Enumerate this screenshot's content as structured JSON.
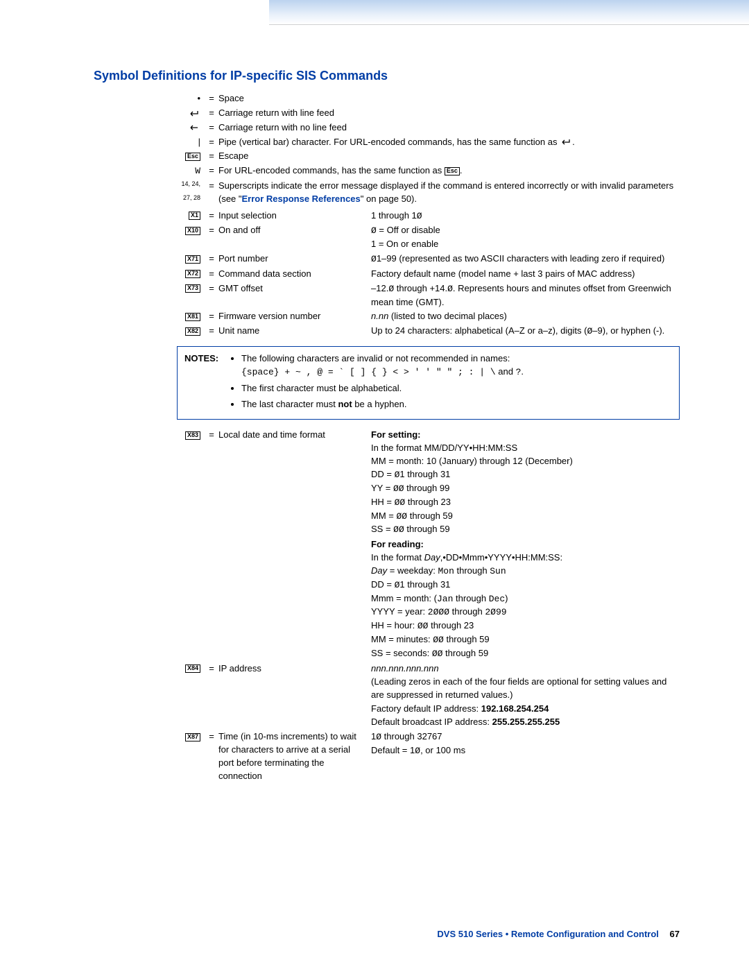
{
  "title": "Symbol Definitions for IP-specific SIS Commands",
  "basic": [
    {
      "sym": "•",
      "label": "Space"
    },
    {
      "sym": "cr-lf",
      "label": "Carriage return with line feed"
    },
    {
      "sym": "cr-nolf",
      "label": "Carriage return with no line feed"
    },
    {
      "sym": "|",
      "label": "Pipe (vertical bar) character. For URL-encoded commands, has the same function as ",
      "trail": "cr-lf"
    },
    {
      "sym": "Esc",
      "label": "Escape",
      "boxed": true
    },
    {
      "sym": "W",
      "label": "For URL-encoded commands, has the same function as ",
      "trail": "Esc",
      "trail_boxed": true,
      "mono": true
    }
  ],
  "super_note_pre": "Superscripts indicate the error message displayed if the command is entered incorrectly or with invalid parameters (see \"",
  "super_note_link": "Error Response References",
  "super_note_post": "\" on page 50).",
  "super_sym": "14, 24, 27, 28",
  "vars": [
    {
      "code": "X1",
      "label": "Input selection",
      "desc": "1 through 1Ø"
    },
    {
      "code": "X10",
      "label": "On and off",
      "desc": "Ø = Off or disable\n1 = On or enable"
    },
    {
      "code": "X71",
      "label": "Port number",
      "desc": "Ø1–99 (represented as two ASCII characters with leading zero if required)"
    },
    {
      "code": "X72",
      "label": "Command data section",
      "desc": "Factory default name (model name + last 3 pairs of MAC address)"
    },
    {
      "code": "X73",
      "label": "GMT offset",
      "desc": "–12.Ø through +14.Ø. Represents hours and minutes offset from Greenwich mean time (GMT)."
    },
    {
      "code": "X81",
      "label": "Firmware version number",
      "desc": "<i>n.nn</i> (listed to two decimal places)"
    },
    {
      "code": "X82",
      "label": "Unit name",
      "desc": "Up to 24 characters: alphabetical (A–Z  or a–z), digits (Ø–9), or hyphen (-)."
    }
  ],
  "notes": {
    "label": "NOTES:",
    "items": [
      "The following characters are invalid or not recommended in names:<br><span class=\"mono\">{space} + ~ , @ = ` [ ] { } &lt; &gt; ' ' \" \" ; : | \\</span> and <span class=\"mono\">?</span>.",
      "The first character must be alphabetical.",
      "The last character must <b>not</b> be a hyphen."
    ]
  },
  "vars2": [
    {
      "code": "X83",
      "label": "Local date and time format",
      "desc": "<b>For setting:</b><br>In the format MM/DD/YY•HH:MM:SS<br>MM = month: 10 (January) through 12 (December)<br>DD = Ø1 through 31<br>YY = ØØ through 99<br>HH = ØØ through 23<br>MM = ØØ through 59<br>SS = ØØ through 59"
    },
    {
      "code": "",
      "label": "",
      "desc": "<b>For reading:</b><br>In the format <i>Day</i>,•DD•Mmm•YYYY•HH:MM:SS:<br><i>Day</i> = weekday: <span class=\"mono\">Mon</span> through <span class=\"mono\">Sun</span><br>DD = Ø1 through 31<br>Mmm = month: (<span class=\"mono\">Jan</span> through <span class=\"mono\">Dec</span>)<br>YYYY = year: <span class=\"mono\">2ØØØ</span> through <span class=\"mono\">2Ø99</span><br>HH = hour: ØØ through 23<br>MM = minutes: ØØ through 59<br>SS = seconds: ØØ through 59"
    },
    {
      "code": "X84",
      "label": "IP address",
      "desc": "<i>nnn.nnn.nnn.nnn</i><br>(Leading zeros in each of the four fields are optional for setting values and are suppressed in returned values.)"
    },
    {
      "code": "",
      "label": "",
      "desc": "Factory default IP address: <b>192.168.254.254</b><br>Default broadcast IP address: <b>255.255.255.255</b>"
    },
    {
      "code": "X87",
      "label": "Time (in 10-ms increments) to wait for characters to arrive at a serial port before terminating the connection",
      "desc": "1Ø through 32767<br>Default = 1Ø, or 100 ms"
    }
  ],
  "footer": {
    "text": "DVS 510 Series • Remote Configuration and Control",
    "page": "67"
  },
  "colors": {
    "accent": "#003da5"
  }
}
